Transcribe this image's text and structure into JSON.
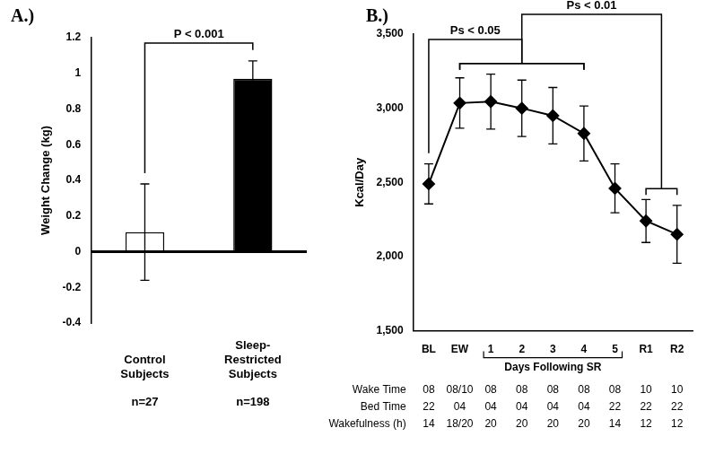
{
  "chart_data": [
    {
      "type": "bar",
      "title": "A.)",
      "categories": [
        "Control Subjects",
        "Sleep-Restricted Subjects"
      ],
      "values": [
        0.11,
        0.97
      ],
      "errors": [
        0.27,
        0.1
      ],
      "colors": [
        "#ffffff",
        "#000000"
      ],
      "n_labels": [
        "n=27",
        "n=198"
      ],
      "y_label": "Weight Change (kg)",
      "ylim": [
        -0.4,
        1.2
      ],
      "yticks": [
        -0.4,
        -0.2,
        0,
        0.2,
        0.4,
        0.6,
        0.8,
        1,
        1.2
      ],
      "grid": false,
      "annotations": [
        {
          "text": "P < 0.001",
          "from": [
            "Control Subjects"
          ],
          "to": [
            "Sleep-Restricted Subjects"
          ]
        }
      ]
    },
    {
      "type": "line",
      "title": "B.)",
      "categories": [
        "BL",
        "EW",
        "1",
        "2",
        "3",
        "4",
        "5",
        "R1",
        "R2"
      ],
      "values": [
        2490,
        3035,
        3045,
        3000,
        2950,
        2830,
        2460,
        2240,
        2150
      ],
      "errors": [
        135,
        170,
        185,
        190,
        190,
        185,
        165,
        145,
        195
      ],
      "color": "#000000",
      "marker": "diamond",
      "y_label": "Kcal/Day",
      "ylim": [
        1500,
        3500
      ],
      "yticks": [
        {
          "value": 1500,
          "label": "1,500"
        },
        {
          "value": 2000,
          "label": "2,000"
        },
        {
          "value": 2500,
          "label": "2,500"
        },
        {
          "value": 3000,
          "label": "3,000"
        },
        {
          "value": 3500,
          "label": "3,500"
        }
      ],
      "grid": false,
      "annotations": [
        {
          "text": "Ps < 0.05",
          "from": [
            "BL"
          ],
          "to": [
            "EW",
            "4"
          ]
        },
        {
          "text": "Ps < 0.01",
          "from": [
            "EW",
            "4"
          ],
          "to": [
            "R1",
            "R2"
          ]
        }
      ],
      "x_group": {
        "text": "Days Following SR",
        "from": "1",
        "to": "5"
      },
      "table": {
        "rows": [
          {
            "label": "Wake Time",
            "cells": [
              "08",
              "08/10",
              "08",
              "08",
              "08",
              "08",
              "08",
              "10",
              "10"
            ]
          },
          {
            "label": "Bed Time",
            "cells": [
              "22",
              "04",
              "04",
              "04",
              "04",
              "04",
              "22",
              "22",
              "22"
            ]
          },
          {
            "label": "Wakefulness (h)",
            "cells": [
              "14",
              "18/20",
              "20",
              "20",
              "20",
              "20",
              "14",
              "12",
              "12"
            ]
          }
        ]
      }
    }
  ]
}
